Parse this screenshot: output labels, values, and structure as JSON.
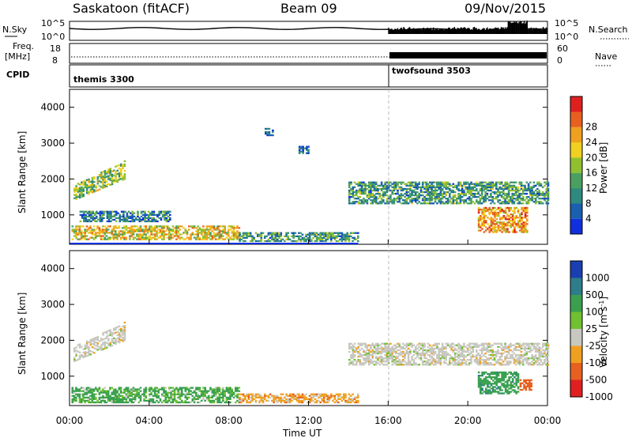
{
  "header": {
    "radar": "Saskatoon (fitACF)",
    "beam": "Beam 09",
    "date": "09/Nov/2015"
  },
  "strip": {
    "nsky_label": "N.Sky",
    "nsky_ticks": [
      "10^5",
      "10^0"
    ],
    "nsearch_label": "N.Search",
    "nsearch_ticks": [
      "10^5",
      "10^0"
    ],
    "freq_label": "Freq.",
    "freq_unit": "[MHz]",
    "freq_ticks": [
      "18",
      "8"
    ],
    "nave_label": "Nave",
    "nave_ticks": [
      "60",
      "0"
    ],
    "cpid_label": "CPID",
    "cpid_segments": [
      {
        "name": "themis 3300",
        "start_hour": 0
      },
      {
        "name": "twofsound 3503",
        "start_hour": 16
      }
    ],
    "freq_mhz": [
      {
        "from_hour": 0,
        "to_hour": 24,
        "value": 10.5
      }
    ]
  },
  "axes": {
    "x_ticks": [
      "00:00",
      "04:00",
      "08:00",
      "12:00",
      "16:00",
      "20:00",
      "00:00"
    ],
    "x_label": "Time UT",
    "y_label": "Slant Range [km]",
    "y_ticks": [
      "1000",
      "2000",
      "3000",
      "4000"
    ]
  },
  "colorbars": {
    "power": {
      "label": "Power [dB]",
      "ticks": [
        "4",
        "8",
        "12",
        "16",
        "20",
        "24",
        "28"
      ],
      "colors": [
        "#1030e0",
        "#1a5fb0",
        "#2e8a80",
        "#4aa060",
        "#90c030",
        "#f0d020",
        "#f0a020",
        "#e86020",
        "#e02020"
      ]
    },
    "velocity": {
      "label": "Velocity [m s",
      "label_sup": "-1",
      "label_end": "]",
      "ticks": [
        "1000",
        "500",
        "100",
        "25",
        "-25",
        "-100",
        "-500",
        "-1000"
      ],
      "colors": [
        "#1a3fb0",
        "#2e7d8a",
        "#3aa050",
        "#70c030",
        "#c8c8c0",
        "#f0a020",
        "#e86020",
        "#e02020"
      ]
    }
  },
  "chart_data": {
    "type": "heatmap",
    "title": "Saskatoon (fitACF) Beam 09 09/Nov/2015",
    "xlabel": "Time UT",
    "ylabel": "Slant Range [km]",
    "xlim_hours": [
      0,
      24
    ],
    "ylim_km": [
      180,
      4500
    ],
    "panels": [
      {
        "name": "Power [dB]",
        "range": [
          0,
          30
        ],
        "regions": [
          {
            "t0": 0.2,
            "t1": 2.8,
            "r0": 1400,
            "r1": 1800,
            "r_end0": 2000,
            "r_end1": 2500,
            "level": 14
          },
          {
            "t0": 0.1,
            "t1": 8.5,
            "r0": 300,
            "r1": 700,
            "level": 18
          },
          {
            "t0": 8.5,
            "t1": 14.5,
            "r0": 250,
            "r1": 500,
            "level": 10
          },
          {
            "t0": 0.5,
            "t1": 5.0,
            "r0": 800,
            "r1": 1100,
            "level": 8
          },
          {
            "t0": 14.0,
            "t1": 24.0,
            "r0": 1300,
            "r1": 1900,
            "level": 10
          },
          {
            "t0": 20.5,
            "t1": 23.0,
            "r0": 500,
            "r1": 1200,
            "level": 22
          },
          {
            "t0": 9.8,
            "t1": 10.2,
            "r0": 3200,
            "r1": 3400,
            "level": 6
          },
          {
            "t0": 11.5,
            "t1": 12.0,
            "r0": 2700,
            "r1": 2900,
            "level": 5
          }
        ]
      },
      {
        "name": "Velocity [m s-1]",
        "range": [
          -1000,
          1000
        ],
        "regions": [
          {
            "t0": 0.2,
            "t1": 2.8,
            "r0": 1400,
            "r1": 1800,
            "r_end0": 2000,
            "r_end1": 2500,
            "level": 0
          },
          {
            "t0": 0.1,
            "t1": 8.5,
            "r0": 250,
            "r1": 700,
            "level": 90
          },
          {
            "t0": 8.5,
            "t1": 14.5,
            "r0": 250,
            "r1": 500,
            "level": -60
          },
          {
            "t0": 14.0,
            "t1": 24.0,
            "r0": 1300,
            "r1": 1900,
            "level": 0
          },
          {
            "t0": 20.5,
            "t1": 22.5,
            "r0": 500,
            "r1": 1100,
            "level": 200
          },
          {
            "t0": 22.6,
            "t1": 23.2,
            "r0": 600,
            "r1": 900,
            "level": -300
          }
        ]
      }
    ]
  }
}
